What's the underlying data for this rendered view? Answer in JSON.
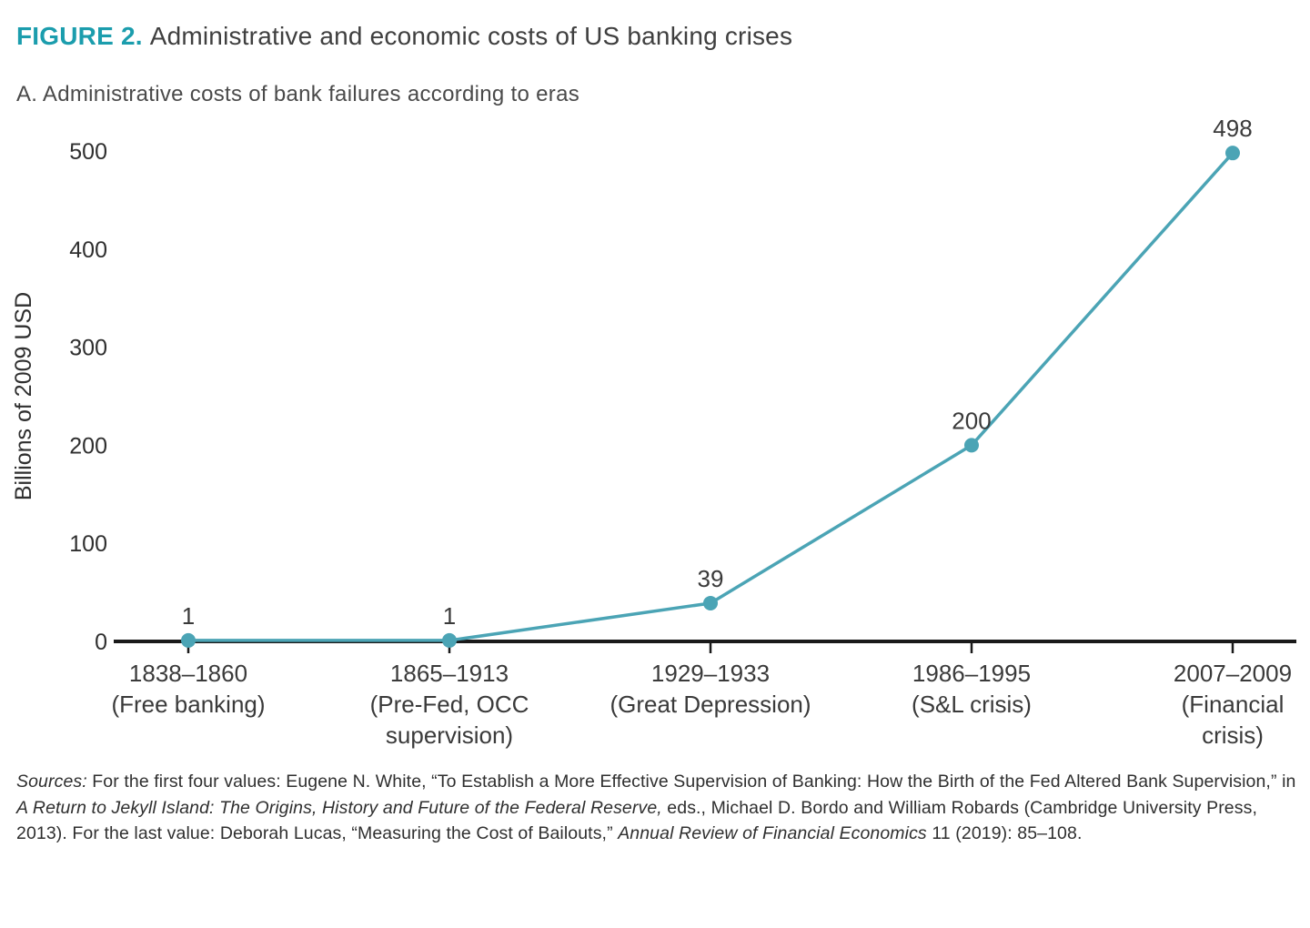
{
  "figure": {
    "label": "FIGURE 2.",
    "title": "Administrative and economic costs of US banking crises",
    "panel_title": "A. Administrative costs of bank failures according to eras"
  },
  "colors": {
    "accent": "#1b9dad",
    "line": "#4ba4b5",
    "marker": "#4ba4b5",
    "axis": "#1a1a1a",
    "tick_text": "#2f2f2f",
    "label_text": "#3a3a3a"
  },
  "chart_data": {
    "type": "line",
    "title": "A. Administrative costs of bank failures according to eras",
    "xlabel": "",
    "ylabel": "Billions of 2009 USD",
    "ylim": [
      0,
      500
    ],
    "yticks": [
      0,
      100,
      200,
      300,
      400,
      500
    ],
    "grid": false,
    "legend": false,
    "categories": [
      [
        "1838–1860",
        "(Free banking)"
      ],
      [
        "1865–1913",
        "(Pre-Fed, OCC",
        "supervision)"
      ],
      [
        "1929–1933",
        "(Great Depression)"
      ],
      [
        "1986–1995",
        "(S&L crisis)"
      ],
      [
        "2007–2009",
        "(Financial",
        "crisis)"
      ]
    ],
    "values": [
      1,
      1,
      39,
      200,
      498
    ],
    "point_labels": [
      "1",
      "1",
      "39",
      "200",
      "498"
    ]
  },
  "sources": {
    "segments": [
      {
        "text": "Sources:",
        "italic": true
      },
      {
        "text": " For the first four values: Eugene N. White, “To Establish a More Effective Supervision of Banking: How the Birth of the Fed Altered Bank Supervision,” in ",
        "italic": false
      },
      {
        "text": "A Return to Jekyll Island: The Origins, History and Future of the Federal Reserve,",
        "italic": true
      },
      {
        "text": " eds., Michael D. Bordo and William Robards (Cambridge University Press, 2013). For the last value: Deborah Lucas, “Measuring the Cost of Bailouts,” ",
        "italic": false
      },
      {
        "text": "Annual Review of Financial Economics",
        "italic": true
      },
      {
        "text": " 11 (2019): 85–108.",
        "italic": false
      }
    ]
  }
}
